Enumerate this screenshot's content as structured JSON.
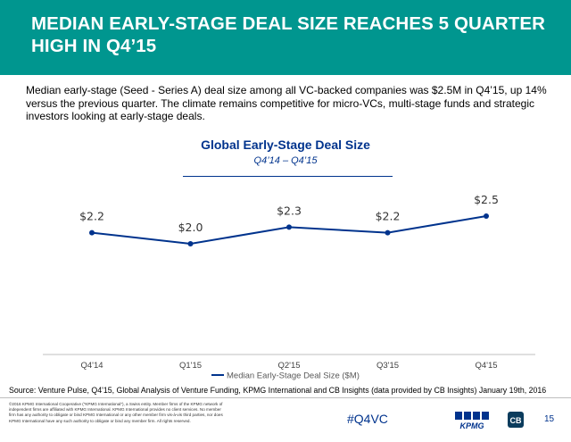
{
  "slide": {
    "title": "MEDIAN EARLY-STAGE DEAL SIZE REACHES 5 QUARTER HIGH IN Q4’15",
    "intro": "Median early-stage (Seed - Series A) deal size among all VC-backed companies was $2.5M in Q4’15, up 14% versus the previous quarter. The climate remains competitive for micro-VCs, multi-stage funds and strategic investors looking at early-stage deals.",
    "header_color": "#00968f"
  },
  "chart_data": {
    "type": "line",
    "title": "Global Early-Stage Deal Size",
    "subtitle": "Q4’14 – Q4’15",
    "categories": [
      "Q4'14",
      "Q1'15",
      "Q2'15",
      "Q3'15",
      "Q4'15"
    ],
    "series": [
      {
        "name": "Median Early-Stage Deal Size ($M)",
        "values": [
          2.2,
          2.0,
          2.3,
          2.2,
          2.5
        ],
        "labels": [
          "$2.2",
          "$2.0",
          "$2.3",
          "$2.2",
          "$2.5"
        ],
        "color": "#00338d"
      }
    ],
    "legend_position": "bottom",
    "grid": false
  },
  "footer": {
    "source": "Source: Venture Pulse, Q4'15, Global Analysis of Venture Funding, KPMG International and CB Insights (data provided by CB Insights) January 19th, 2016",
    "copyright": "©2016 KPMG International Cooperative (“KPMG International”), a Swiss entity. Member firms of the KPMG network of independent firms are affiliated with KPMG International. KPMG International provides no client services. No member firm has any authority to obligate or bind KPMG International or any other member firm vis-à-vis third parties, nor does KPMG International have any such authority to obligate or bind any member firm. All rights reserved.",
    "hashtag": "#Q4VC",
    "kpmg_logo_text": "KPMG",
    "cb_logo_text": "CB",
    "page_number": "15"
  }
}
